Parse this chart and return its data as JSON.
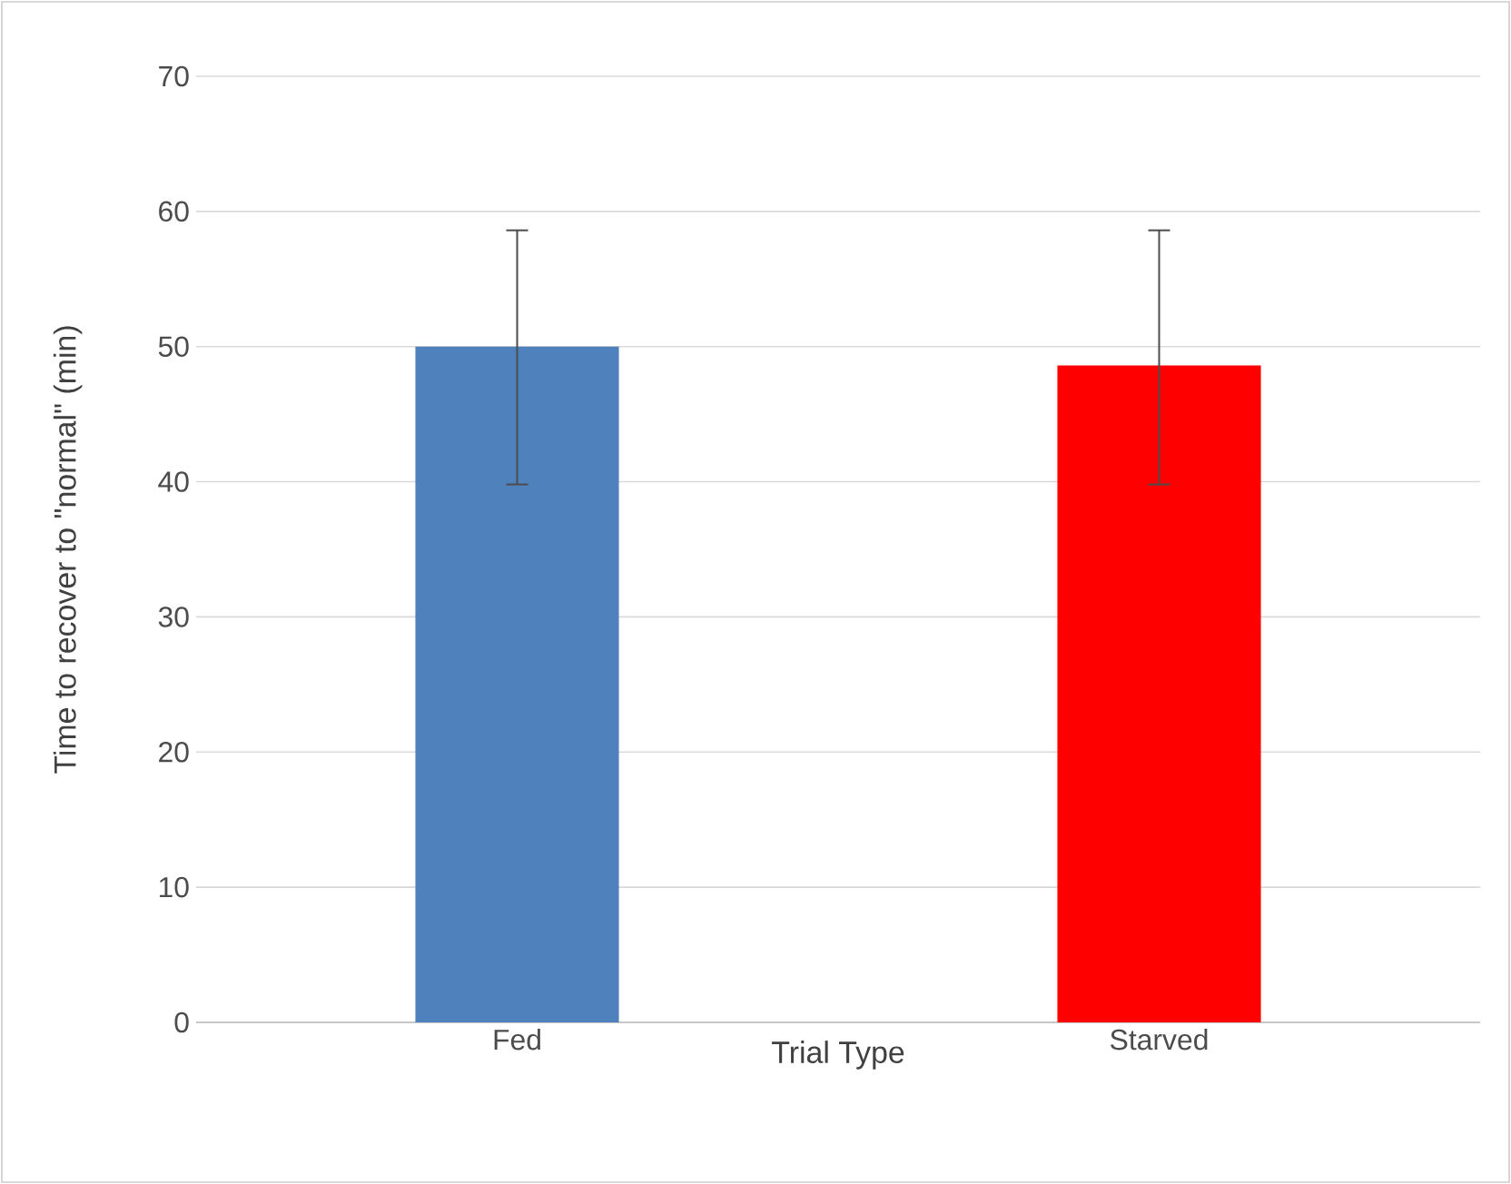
{
  "chart_data": {
    "type": "bar",
    "xlabel": "Trial Type",
    "ylabel": "Time to recover to \"normal\"  (min)",
    "categories": [
      "Fed",
      "Starved"
    ],
    "values": [
      50,
      48.6
    ],
    "colors": [
      "#4f81bd",
      "#ff0000"
    ],
    "errors": [
      [
        39.8,
        58.6
      ],
      [
        39.8,
        58.6
      ]
    ],
    "ylim": [
      0,
      70
    ],
    "yticks": [
      0,
      10,
      20,
      30,
      40,
      50,
      60,
      70
    ],
    "grid": "y"
  }
}
